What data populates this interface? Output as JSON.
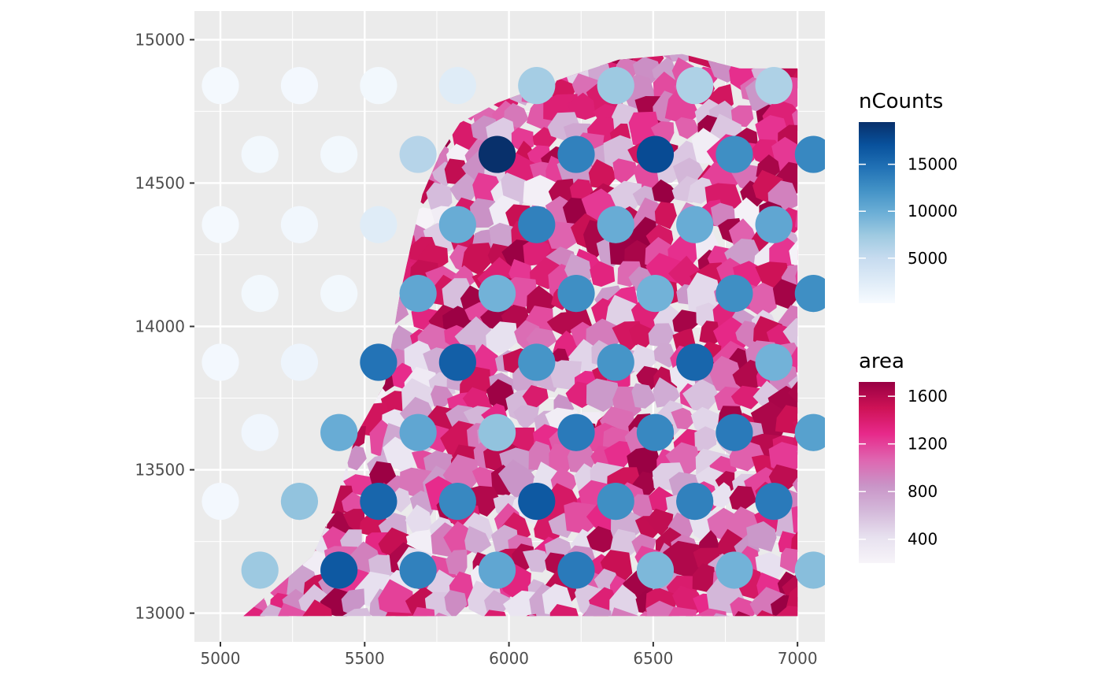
{
  "chart_data": {
    "type": "scatter",
    "description_free": true,
    "x_axis": {
      "ticks": [
        5000,
        5500,
        6000,
        6500,
        7000
      ],
      "tick_labels": [
        "5000",
        "5500",
        "6000",
        "6500",
        "7000"
      ],
      "lim": [
        4910,
        7095
      ]
    },
    "y_axis": {
      "ticks": [
        13000,
        13500,
        14000,
        14500,
        15000
      ],
      "tick_labels": [
        "13000",
        "13500",
        "14000",
        "14500",
        "15000"
      ],
      "lim": [
        12900,
        15100
      ]
    },
    "grid": true,
    "legend_position": "right",
    "legends": {
      "ncounts": {
        "title": "nCounts",
        "breaks": [
          15000,
          10000,
          5000
        ],
        "break_labels": [
          "15000",
          "10000",
          "5000"
        ],
        "range": [
          200,
          19500
        ],
        "colors": [
          "#f7fbff",
          "#deebf7",
          "#c6dbef",
          "#9ecae1",
          "#6baed6",
          "#4292c6",
          "#2171b5",
          "#08519c",
          "#08306b"
        ]
      },
      "area": {
        "title": "area",
        "breaks": [
          1600,
          1200,
          800,
          400
        ],
        "break_labels": [
          "1600",
          "1200",
          "800",
          "400"
        ],
        "range": [
          200,
          1720
        ],
        "colors": [
          "#f7f4f9",
          "#e7e1ef",
          "#d4b9da",
          "#c994c7",
          "#df65b0",
          "#e7298a",
          "#ce1256",
          "#980043"
        ]
      }
    },
    "spot_x": [
      5000,
      5137,
      5274,
      5411,
      5548,
      5685,
      5822,
      5959,
      6096,
      6233,
      6370,
      6507,
      6644,
      6781,
      6918,
      7055
    ],
    "spot_y": [
      13150,
      13390,
      13630,
      13875,
      14115,
      14355,
      14600,
      14840
    ],
    "spots": [
      {
        "row": 0,
        "cols": [
          1,
          3,
          5,
          7,
          9,
          11,
          13,
          15
        ],
        "ncounts": [
          7500,
          16500,
          13500,
          10500,
          14000,
          9000,
          9500,
          8500
        ]
      },
      {
        "row": 1,
        "cols": [
          0,
          2,
          4,
          6,
          8,
          10,
          12,
          14
        ],
        "ncounts": [
          600,
          8000,
          15500,
          13000,
          16500,
          12500,
          13500,
          14000
        ]
      },
      {
        "row": 2,
        "cols": [
          1,
          3,
          5,
          7,
          9,
          11,
          13,
          15
        ],
        "ncounts": [
          900,
          10000,
          10500,
          8000,
          14000,
          13000,
          14000,
          11000
        ]
      },
      {
        "row": 3,
        "cols": [
          0,
          2,
          4,
          6,
          8,
          10,
          12,
          14
        ],
        "ncounts": [
          600,
          1200,
          14500,
          16000,
          12000,
          12000,
          15500,
          9500
        ]
      },
      {
        "row": 4,
        "cols": [
          1,
          3,
          5,
          7,
          9,
          11,
          13,
          15
        ],
        "ncounts": [
          700,
          700,
          10500,
          9500,
          12500,
          9500,
          12500,
          12500
        ]
      },
      {
        "row": 5,
        "cols": [
          0,
          2,
          4,
          6,
          8,
          10,
          12,
          14
        ],
        "ncounts": [
          500,
          800,
          2500,
          10000,
          13500,
          10000,
          10000,
          10500
        ]
      },
      {
        "row": 6,
        "cols": [
          1,
          3,
          5,
          7,
          9,
          11,
          13,
          15
        ],
        "ncounts": [
          700,
          700,
          6000,
          19500,
          13500,
          17500,
          12500,
          13000
        ]
      },
      {
        "row": 7,
        "cols": [
          0,
          2,
          4,
          6,
          8,
          10,
          12,
          14
        ],
        "ncounts": [
          500,
          600,
          700,
          2500,
          7000,
          7500,
          6500,
          6500
        ]
      }
    ],
    "cells_region": {
      "boundary_poly": [
        [
          5080,
          12990
        ],
        [
          5320,
          13200
        ],
        [
          5390,
          13360
        ],
        [
          5470,
          13620
        ],
        [
          5570,
          13800
        ],
        [
          5620,
          14100
        ],
        [
          5660,
          14280
        ],
        [
          5700,
          14460
        ],
        [
          5760,
          14600
        ],
        [
          5830,
          14710
        ],
        [
          5960,
          14780
        ],
        [
          6200,
          14870
        ],
        [
          6380,
          14930
        ],
        [
          6600,
          14950
        ],
        [
          6800,
          14900
        ],
        [
          7000,
          14900
        ],
        [
          7000,
          12990
        ]
      ],
      "area_range": [
        200,
        1720
      ]
    }
  }
}
